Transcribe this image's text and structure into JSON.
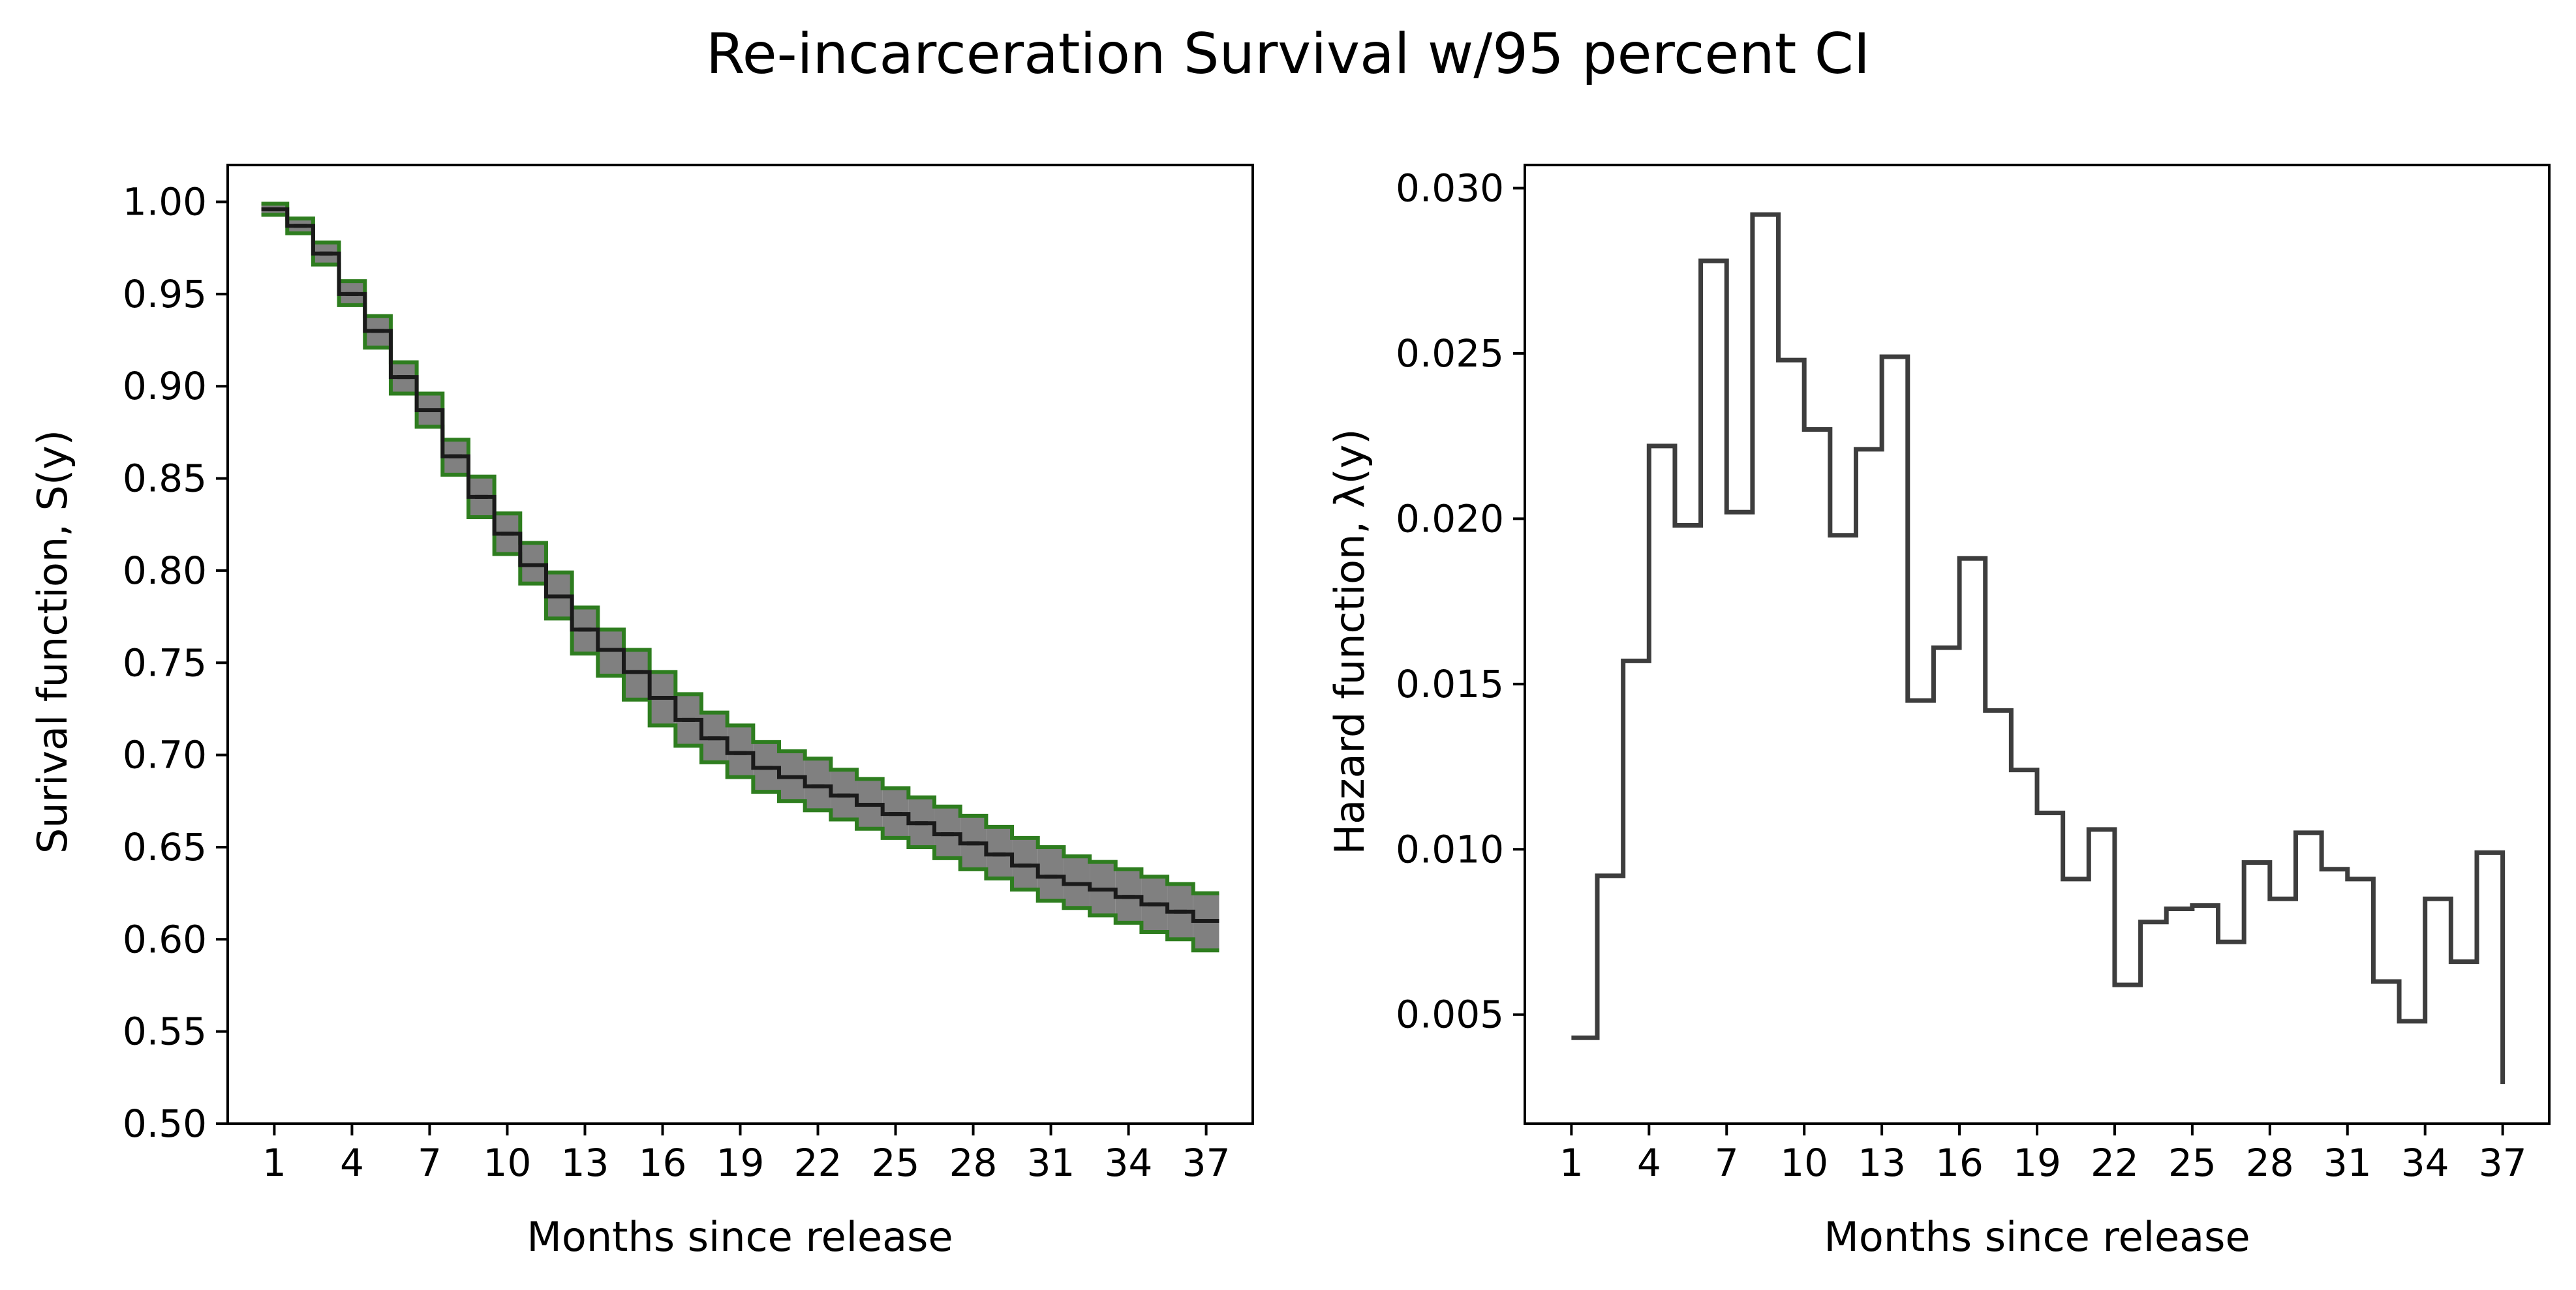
{
  "figure": {
    "title": "Re-incarceration Survival w/95 percent CI"
  },
  "chart_data": [
    {
      "type": "line",
      "step": "post",
      "x_ticks": [
        1,
        4,
        7,
        10,
        13,
        16,
        19,
        22,
        25,
        28,
        31,
        34,
        37
      ],
      "xlabel": "Months since release",
      "ylabel": "Surival function, S(y)",
      "xlim": [
        -0.8,
        38.8
      ],
      "ylim": [
        0.5,
        1.02
      ],
      "y_ticks": [
        0.5,
        0.55,
        0.6,
        0.65,
        0.7,
        0.75,
        0.8,
        0.85,
        0.9,
        0.95,
        1.0
      ],
      "y_tick_labels": [
        "0.50",
        "0.55",
        "0.60",
        "0.65",
        "0.70",
        "0.75",
        "0.80",
        "0.85",
        "0.90",
        "0.95",
        "1.00"
      ],
      "grid": false,
      "colors": {
        "estimate": "#1a1a1a",
        "ci_bounds": "#2e7d1f",
        "ci_fill": "#808080"
      },
      "series": [
        {
          "role": "estimate",
          "x": [
            1,
            2,
            3,
            4,
            5,
            6,
            7,
            8,
            9,
            10,
            11,
            12,
            13,
            14,
            15,
            16,
            17,
            18,
            19,
            20,
            21,
            22,
            23,
            24,
            25,
            26,
            27,
            28,
            29,
            30,
            31,
            32,
            33,
            34,
            35,
            36,
            37
          ],
          "values": [
            0.996,
            0.987,
            0.972,
            0.95,
            0.93,
            0.905,
            0.887,
            0.862,
            0.84,
            0.82,
            0.803,
            0.786,
            0.768,
            0.757,
            0.745,
            0.731,
            0.719,
            0.709,
            0.701,
            0.693,
            0.688,
            0.683,
            0.678,
            0.673,
            0.668,
            0.663,
            0.657,
            0.652,
            0.646,
            0.64,
            0.634,
            0.63,
            0.627,
            0.623,
            0.619,
            0.615,
            0.61
          ]
        },
        {
          "role": "ci_upper",
          "x": [
            1,
            2,
            3,
            4,
            5,
            6,
            7,
            8,
            9,
            10,
            11,
            12,
            13,
            14,
            15,
            16,
            17,
            18,
            19,
            20,
            21,
            22,
            23,
            24,
            25,
            26,
            27,
            28,
            29,
            30,
            31,
            32,
            33,
            34,
            35,
            36,
            37
          ],
          "values": [
            0.999,
            0.991,
            0.978,
            0.957,
            0.938,
            0.913,
            0.896,
            0.871,
            0.851,
            0.831,
            0.815,
            0.799,
            0.78,
            0.768,
            0.757,
            0.745,
            0.733,
            0.723,
            0.716,
            0.707,
            0.702,
            0.698,
            0.692,
            0.687,
            0.682,
            0.677,
            0.672,
            0.667,
            0.661,
            0.655,
            0.65,
            0.645,
            0.642,
            0.638,
            0.634,
            0.63,
            0.625
          ]
        },
        {
          "role": "ci_lower",
          "x": [
            1,
            2,
            3,
            4,
            5,
            6,
            7,
            8,
            9,
            10,
            11,
            12,
            13,
            14,
            15,
            16,
            17,
            18,
            19,
            20,
            21,
            22,
            23,
            24,
            25,
            26,
            27,
            28,
            29,
            30,
            31,
            32,
            33,
            34,
            35,
            36,
            37
          ],
          "values": [
            0.993,
            0.983,
            0.966,
            0.944,
            0.921,
            0.896,
            0.878,
            0.852,
            0.829,
            0.809,
            0.793,
            0.774,
            0.755,
            0.743,
            0.73,
            0.716,
            0.705,
            0.696,
            0.688,
            0.68,
            0.675,
            0.67,
            0.665,
            0.66,
            0.655,
            0.65,
            0.644,
            0.638,
            0.633,
            0.627,
            0.621,
            0.617,
            0.613,
            0.609,
            0.604,
            0.6,
            0.594
          ]
        }
      ]
    },
    {
      "type": "line",
      "step": "post",
      "x_ticks": [
        1,
        4,
        7,
        10,
        13,
        16,
        19,
        22,
        25,
        28,
        31,
        34,
        37
      ],
      "xlabel": "Months since release",
      "ylabel": "Hazard function, λ(y)",
      "xlim": [
        -0.8,
        38.8
      ],
      "ylim": [
        0.0017,
        0.0307
      ],
      "y_ticks": [
        0.005,
        0.01,
        0.015,
        0.02,
        0.025,
        0.03
      ],
      "y_tick_labels": [
        "0.005",
        "0.010",
        "0.015",
        "0.020",
        "0.025",
        "0.030"
      ],
      "grid": false,
      "colors": {
        "line": "#3d3d3d"
      },
      "series": [
        {
          "role": "hazard",
          "x": [
            1,
            2,
            3,
            4,
            5,
            6,
            7,
            8,
            9,
            10,
            11,
            12,
            13,
            14,
            15,
            16,
            17,
            18,
            19,
            20,
            21,
            22,
            23,
            24,
            25,
            26,
            27,
            28,
            29,
            30,
            31,
            32,
            33,
            34,
            35,
            36,
            37
          ],
          "values": [
            0.0043,
            0.0092,
            0.0157,
            0.0222,
            0.0198,
            0.0278,
            0.0202,
            0.0292,
            0.0248,
            0.0227,
            0.0195,
            0.0221,
            0.0249,
            0.0145,
            0.0161,
            0.0188,
            0.0142,
            0.0124,
            0.0111,
            0.0091,
            0.0106,
            0.0059,
            0.0078,
            0.0082,
            0.0083,
            0.0072,
            0.0096,
            0.0085,
            0.0105,
            0.0094,
            0.0091,
            0.006,
            0.0048,
            0.0085,
            0.0066,
            0.0099,
            0.0029
          ]
        }
      ]
    }
  ]
}
